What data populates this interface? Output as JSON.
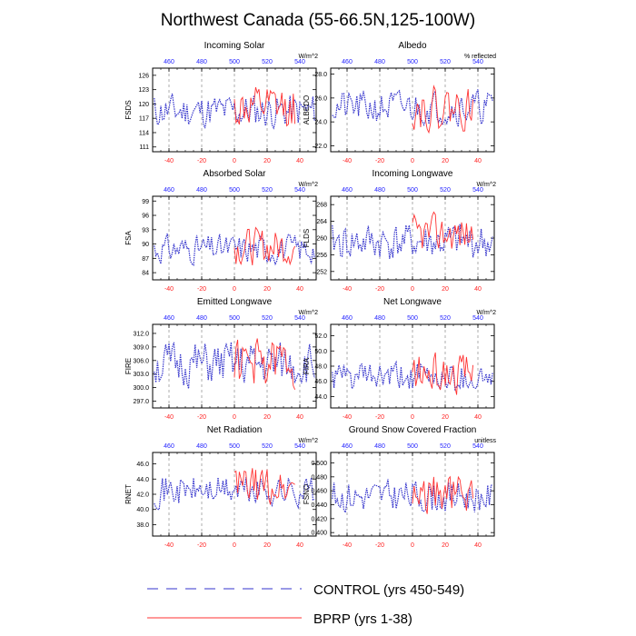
{
  "title": "Northwest Canada (55-66.5N,125-100W)",
  "legend": [
    {
      "label": "CONTROL (yrs 450-549)",
      "color": "#3333cc",
      "style": "dashed"
    },
    {
      "label": "BPRP (yrs 1-38)",
      "color": "#ff3333",
      "style": "solid"
    }
  ],
  "chart_data": [
    {
      "type": "line",
      "title": "Incoming Solar",
      "ylabel": "FSDS",
      "units": "W/m^2",
      "ylim": [
        110,
        127.5
      ],
      "yticks": [
        "111",
        "114",
        "117",
        "120",
        "123",
        "126"
      ],
      "bottom_ticks": [
        "-40",
        "-20",
        "0",
        "20",
        "40"
      ],
      "top_ticks": [
        "460",
        "480",
        "500",
        "520",
        "540"
      ],
      "series": [
        {
          "name": "CONTROL",
          "seed": 11,
          "mean": 118.5,
          "amp": 2.8
        },
        {
          "name": "BPRP",
          "seed": 12,
          "mean": 119.0,
          "amp": 3.5
        }
      ]
    },
    {
      "type": "line",
      "title": "Albedo",
      "ylabel": "ALBEDO",
      "units": "% reflected",
      "ylim": [
        21.5,
        28.5
      ],
      "yticks": [
        "22.0",
        "24.0",
        "26.0",
        "28.0"
      ],
      "bottom_ticks": [
        "-40",
        "-20",
        "0",
        "20",
        "40"
      ],
      "top_ticks": [
        "460",
        "480",
        "500",
        "520",
        "540"
      ],
      "series": [
        {
          "name": "CONTROL",
          "seed": 21,
          "mean": 25.2,
          "amp": 1.1
        },
        {
          "name": "BPRP",
          "seed": 22,
          "mean": 25.2,
          "amp": 1.4
        }
      ]
    },
    {
      "type": "line",
      "title": "Absorbed Solar",
      "ylabel": "FSA",
      "units": "W/m^2",
      "ylim": [
        82.5,
        100
      ],
      "yticks": [
        "84",
        "87",
        "90",
        "93",
        "96",
        "99"
      ],
      "bottom_ticks": [
        "-40",
        "-20",
        "0",
        "20",
        "40"
      ],
      "top_ticks": [
        "460",
        "480",
        "500",
        "520",
        "540"
      ],
      "series": [
        {
          "name": "CONTROL",
          "seed": 31,
          "mean": 89.0,
          "amp": 2.3
        },
        {
          "name": "BPRP",
          "seed": 32,
          "mean": 89.5,
          "amp": 3.0
        }
      ]
    },
    {
      "type": "line",
      "title": "Incoming Longwave",
      "ylabel": "FLDS",
      "units": "W/m^2",
      "ylim": [
        250,
        270
      ],
      "yticks": [
        "252",
        "256",
        "260",
        "264",
        "268"
      ],
      "bottom_ticks": [
        "-40",
        "-20",
        "0",
        "20",
        "40"
      ],
      "top_ticks": [
        "460",
        "480",
        "500",
        "520",
        "540"
      ],
      "series": [
        {
          "name": "CONTROL",
          "seed": 41,
          "mean": 259.0,
          "amp": 3.5
        },
        {
          "name": "BPRP",
          "seed": 42,
          "mean": 261.0,
          "amp": 3.5
        }
      ]
    },
    {
      "type": "line",
      "title": "Emitted Longwave",
      "ylabel": "FIRE",
      "units": "W/m^2",
      "ylim": [
        295.5,
        314
      ],
      "yticks": [
        "297.0",
        "300.0",
        "303.0",
        "306.0",
        "309.0",
        "312.0"
      ],
      "bottom_ticks": [
        "-40",
        "-20",
        "0",
        "20",
        "40"
      ],
      "top_ticks": [
        "460",
        "480",
        "500",
        "520",
        "540"
      ],
      "series": [
        {
          "name": "CONTROL",
          "seed": 51,
          "mean": 305.0,
          "amp": 3.8
        },
        {
          "name": "BPRP",
          "seed": 52,
          "mean": 305.5,
          "amp": 4.2
        }
      ]
    },
    {
      "type": "line",
      "title": "Net Longwave",
      "ylabel": "FIRA",
      "units": "W/m^2",
      "ylim": [
        42.5,
        53.5
      ],
      "yticks": [
        "44.0",
        "46.0",
        "48.0",
        "50.0",
        "52.0"
      ],
      "bottom_ticks": [
        "-40",
        "-20",
        "0",
        "20",
        "40"
      ],
      "top_ticks": [
        "460",
        "480",
        "500",
        "520",
        "540"
      ],
      "series": [
        {
          "name": "CONTROL",
          "seed": 61,
          "mean": 46.5,
          "amp": 1.5
        },
        {
          "name": "BPRP",
          "seed": 62,
          "mean": 47.0,
          "amp": 2.0
        }
      ]
    },
    {
      "type": "line",
      "title": "Net Radiation",
      "ylabel": "RNET",
      "units": "W/m^2",
      "ylim": [
        36.5,
        47.5
      ],
      "yticks": [
        "38.0",
        "40.0",
        "42.0",
        "44.0",
        "46.0"
      ],
      "bottom_ticks": [
        "-40",
        "-20",
        "0",
        "20",
        "40"
      ],
      "top_ticks": [
        "460",
        "480",
        "500",
        "520",
        "540"
      ],
      "series": [
        {
          "name": "CONTROL",
          "seed": 71,
          "mean": 42.5,
          "amp": 1.6
        },
        {
          "name": "BPRP",
          "seed": 72,
          "mean": 43.0,
          "amp": 2.0
        }
      ]
    },
    {
      "type": "line",
      "title": "Ground Snow Covered Fraction",
      "ylabel": "FSNO",
      "units": "unitless",
      "ylim": [
        0.395,
        0.515
      ],
      "yticks": [
        "0.400",
        "0.420",
        "0.440",
        "0.460",
        "0.480",
        "0.500"
      ],
      "bottom_ticks": [
        "-40",
        "-20",
        "0",
        "20",
        "40"
      ],
      "top_ticks": [
        "460",
        "480",
        "500",
        "520",
        "540"
      ],
      "series": [
        {
          "name": "CONTROL",
          "seed": 81,
          "mean": 0.452,
          "amp": 0.018
        },
        {
          "name": "BPRP",
          "seed": 82,
          "mean": 0.455,
          "amp": 0.022
        }
      ]
    }
  ]
}
